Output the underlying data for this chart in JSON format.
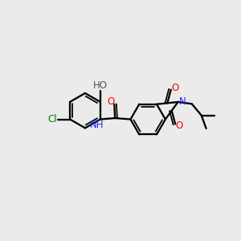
{
  "background_color": "#ebebeb",
  "figsize": [
    3.0,
    3.0
  ],
  "dpi": 100,
  "bond_lw": 1.5,
  "bond_color": "#000000",
  "label_fontsize": 8.5,
  "atoms": {
    "O_top": {
      "text": "O",
      "color": "#ff0000"
    },
    "O_bot": {
      "text": "O",
      "color": "#ff0000"
    },
    "O_amid": {
      "text": "O",
      "color": "#ff0000"
    },
    "N_isoind": {
      "text": "N",
      "color": "#2222ff"
    },
    "NH_amid": {
      "text": "NH",
      "color": "#2222ff"
    },
    "Cl": {
      "text": "Cl",
      "color": "#008000"
    },
    "HO": {
      "text": "HO",
      "color": "#555555"
    }
  }
}
